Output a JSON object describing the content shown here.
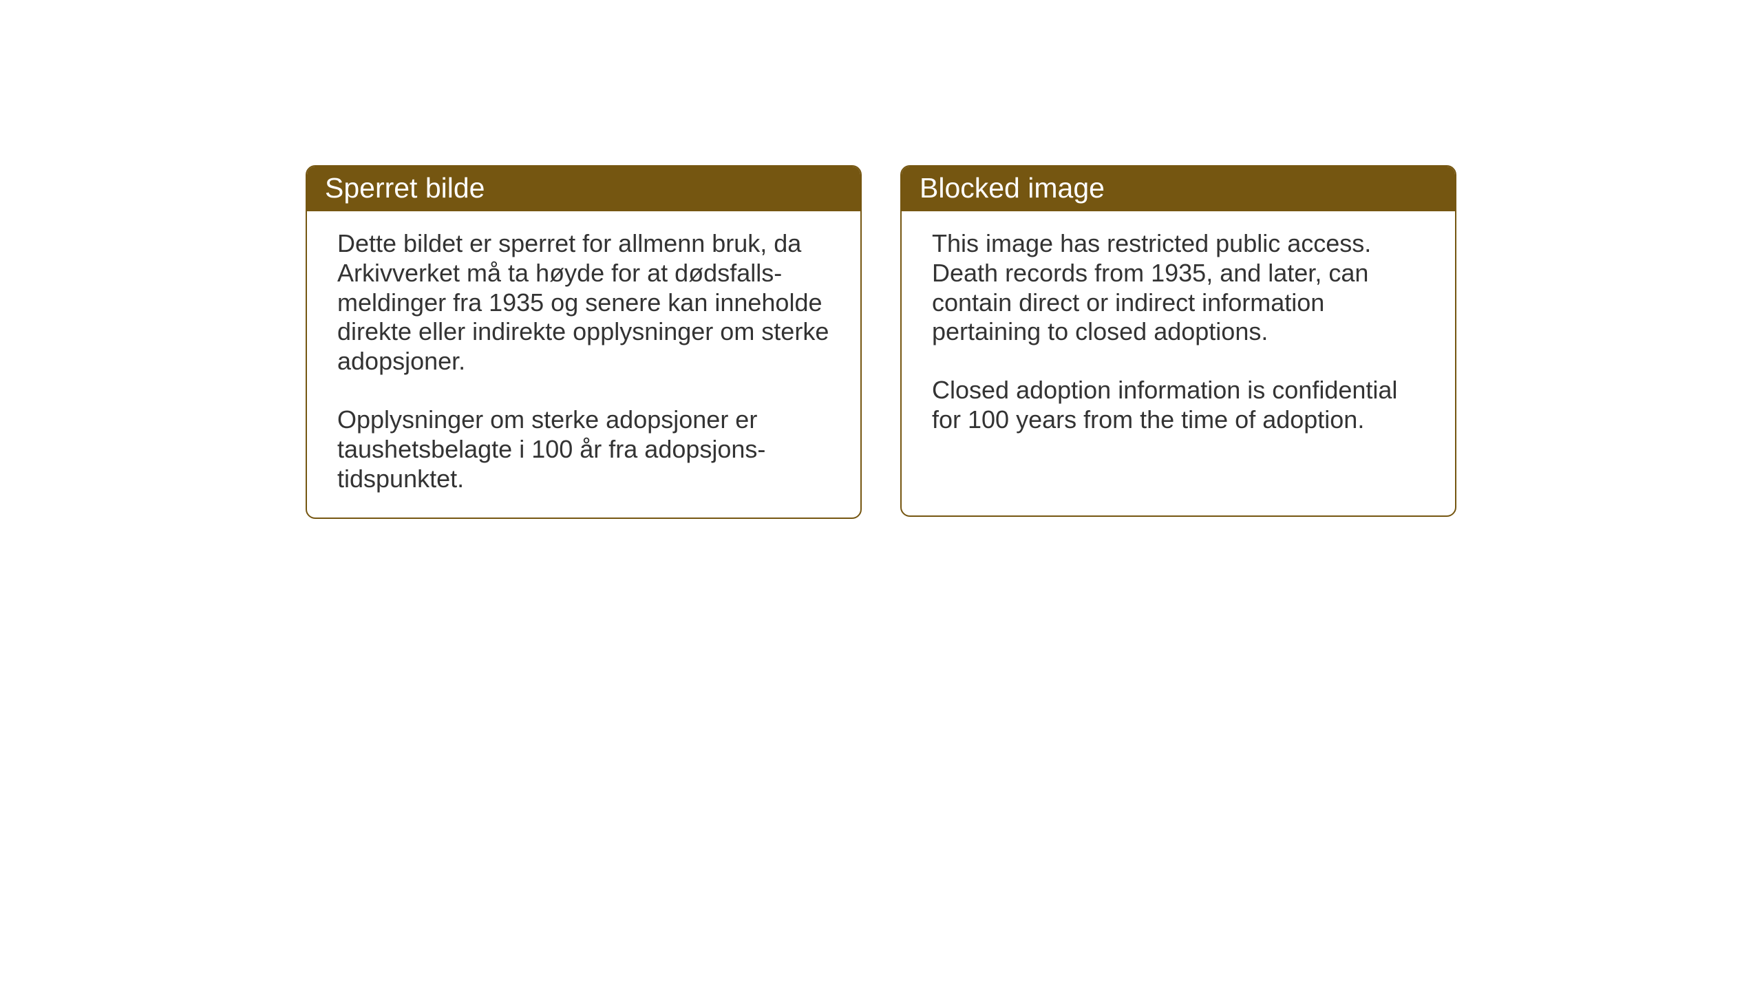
{
  "layout": {
    "background_color": "#ffffff",
    "box_border_color": "#755611",
    "header_background_color": "#755611",
    "header_text_color": "#ffffff",
    "body_text_color": "#333333",
    "header_fontsize": 41,
    "body_fontsize": 36
  },
  "left_box": {
    "title": "Sperret bilde",
    "paragraph1": "Dette bildet er sperret for allmenn bruk, da Arkivverket må ta høyde for at dødsfalls-meldinger fra 1935 og senere kan inneholde direkte eller indirekte opplysninger om sterke adopsjoner.",
    "paragraph2": "Opplysninger om sterke adopsjoner er taushetsbelagte i 100 år fra adopsjons-tidspunktet."
  },
  "right_box": {
    "title": "Blocked image",
    "paragraph1": "This image has restricted public access. Death records from 1935, and later, can contain direct or indirect information pertaining to closed adoptions.",
    "paragraph2": "Closed adoption information is confidential for 100 years from the time of adoption."
  }
}
